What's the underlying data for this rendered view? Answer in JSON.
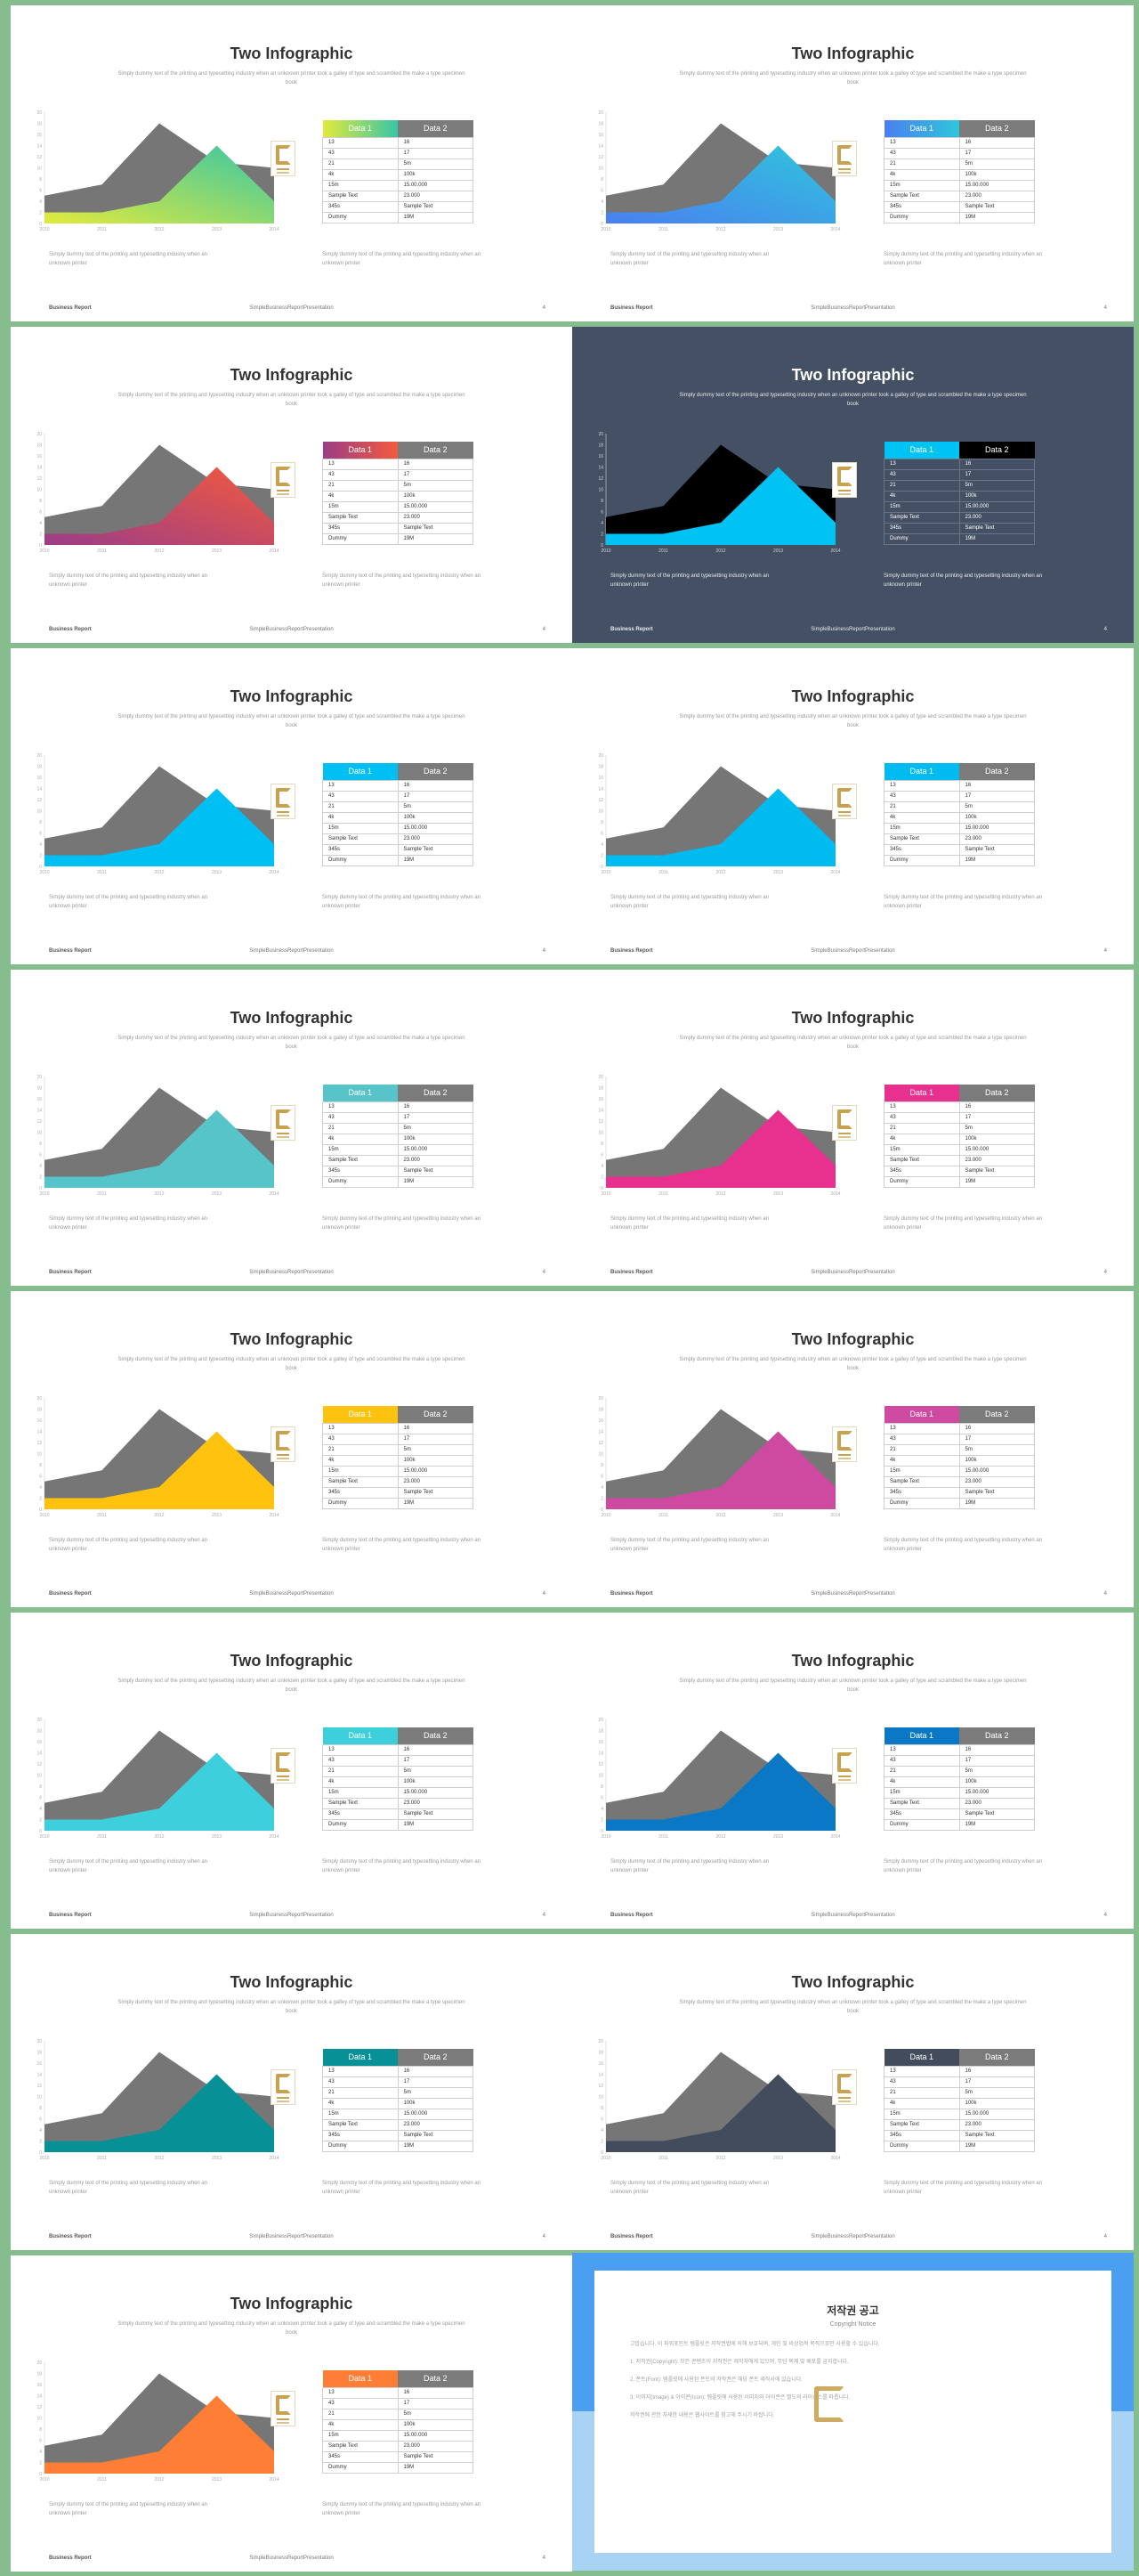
{
  "slide_text": {
    "title": "Two Infographic",
    "subtitle": "Simply dummy text of the printing and typesetting industry when an unknown printer took a galley of type and scrambled the make a type specimen book",
    "caption_left": "Simply dummy text of the printing and typesetting industry when an unknown printer",
    "caption_right": "Simply dummy text of the printing and typesetting industry when an unknown printer",
    "footer_left": "Business Report",
    "footer_center": "SimpleBusinessReportPresentation",
    "page_number": "4"
  },
  "table": {
    "headers": [
      "Data 1",
      "Data 2"
    ],
    "rows": [
      [
        "13",
        "16"
      ],
      [
        "43",
        "17"
      ],
      [
        "21",
        "5m"
      ],
      [
        "4k",
        "100k"
      ],
      [
        "15m",
        "15.00.000"
      ],
      [
        "Sample Text",
        "23.000"
      ],
      [
        "345s",
        "Sample Text"
      ],
      [
        "Dummy",
        "19M"
      ]
    ]
  },
  "chart_data": {
    "type": "area",
    "x": [
      "2010",
      "2011",
      "2012",
      "2013",
      "2014"
    ],
    "yticks": [
      "0",
      "2",
      "4",
      "6",
      "8",
      "10",
      "12",
      "14",
      "16",
      "18",
      "20"
    ],
    "ylim": [
      0,
      20
    ],
    "series": [
      {
        "values": [
          5,
          7,
          18,
          11,
          10
        ],
        "color": "#767676"
      },
      {
        "values": [
          2,
          2,
          4,
          14,
          4
        ]
      }
    ],
    "grid": false
  },
  "slides": [
    {
      "accent": "gradient-yellow-green",
      "grad": [
        "#e2ea3c",
        "#38c6a6"
      ],
      "dark": false
    },
    {
      "accent": "gradient-blue",
      "grad": [
        "#4a7ff0",
        "#2fc6dc"
      ],
      "dark": false
    },
    {
      "accent": "gradient-red",
      "grad": [
        "#9b3d87",
        "#f35a3d"
      ],
      "dark": false
    },
    {
      "accent": "#00c2f3",
      "dark": true,
      "back_color": "#000000"
    },
    {
      "accent": "#00bff3",
      "dark": false
    },
    {
      "accent": "#00bbf0",
      "dark": false
    },
    {
      "accent": "#56c4c8",
      "dark": false
    },
    {
      "accent": "#e8318f",
      "dark": false
    },
    {
      "accent": "#ffc20e",
      "dark": false
    },
    {
      "accent": "#ce4aa0",
      "dark": false
    },
    {
      "accent": "#3dd0dc",
      "dark": false
    },
    {
      "accent": "#0b78c6",
      "dark": false
    },
    {
      "accent": "#079096",
      "dark": false
    },
    {
      "accent": "#434c5c",
      "dark": false
    },
    {
      "accent": "#ff7e35",
      "dark": false
    }
  ],
  "copyright": {
    "title": "저작권 공고",
    "subtitle": "Copyright Notice",
    "paragraphs": [
      "고맙습니다. 이 파워포인트 템플릿은 저작권법에 의해 보호되며, 개인 및 비상업적 목적으로만 사용할 수 있습니다.",
      "1. 저작권(Copyright): 모든 콘텐츠의 저작권은 제작자에게 있으며, 무단 복제 및 배포를 금지합니다.",
      "2. 폰트(Font): 템플릿에 사용된 폰트의 저작권은 해당 폰트 제작사에 있습니다.",
      "3. 이미지(Image) & 아이콘(Icon): 템플릿에 사용된 이미지와 아이콘은 별도의 라이선스를 따릅니다.",
      "저작권에 관한 자세한 내용은 웹사이트를 참고해 주시기 바랍니다."
    ]
  }
}
